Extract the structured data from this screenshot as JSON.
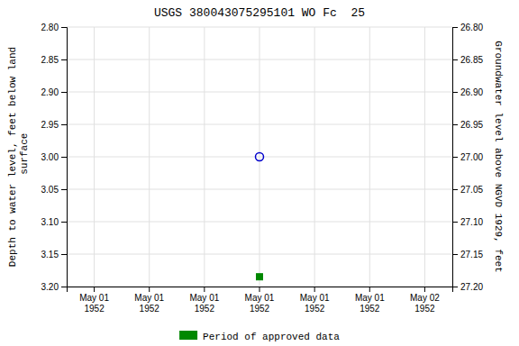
{
  "chart_data": {
    "type": "scatter",
    "title": "USGS 380043075295101 WO Fc  25",
    "ylabel": "Depth to water level, feet below land\n surface",
    "y2label": "Groundwater level above NGVD 1929, feet",
    "categories": [
      "May 01\n1952",
      "May 01\n1952",
      "May 01\n1952",
      "May 01\n1952",
      "May 01\n1952",
      "May 01\n1952",
      "May 02\n1952"
    ],
    "series": [
      {
        "color": "#0000cc",
        "marker": "open-circle",
        "values": [
          null,
          null,
          null,
          3.0,
          null,
          null,
          null
        ]
      },
      {
        "name": "Period of approved data",
        "color": "#008800",
        "marker": "square",
        "values": [
          null,
          null,
          null,
          3.185,
          null,
          null,
          null
        ]
      }
    ],
    "ylim": [
      3.2,
      2.8
    ],
    "yticks": [
      {
        "value": 2.8,
        "label": "2.80"
      },
      {
        "value": 2.85,
        "label": "2.85"
      },
      {
        "value": 2.9,
        "label": "2.90"
      },
      {
        "value": 2.95,
        "label": "2.95"
      },
      {
        "value": 3.0,
        "label": "3.00"
      },
      {
        "value": 3.05,
        "label": "3.05"
      },
      {
        "value": 3.1,
        "label": "3.10"
      },
      {
        "value": 3.15,
        "label": "3.15"
      },
      {
        "value": 3.2,
        "label": "3.20"
      }
    ],
    "y2lim": [
      27.2,
      26.8
    ],
    "y2ticks": [
      {
        "value": 26.8,
        "label": "26.80"
      },
      {
        "value": 26.85,
        "label": "26.85"
      },
      {
        "value": 26.9,
        "label": "26.90"
      },
      {
        "value": 26.95,
        "label": "26.95"
      },
      {
        "value": 27.0,
        "label": "27.00"
      },
      {
        "value": 27.05,
        "label": "27.05"
      },
      {
        "value": 27.1,
        "label": "27.10"
      },
      {
        "value": 27.15,
        "label": "27.15"
      },
      {
        "value": 27.2,
        "label": "27.20"
      }
    ],
    "grid": true,
    "legend": "bottom"
  }
}
